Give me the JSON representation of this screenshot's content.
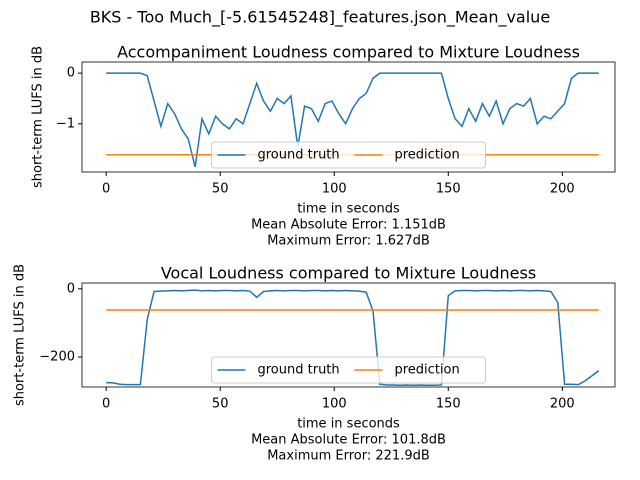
{
  "title": "BKS - Too Much_[-5.61545248]_features.json_Mean_value",
  "chart_data": [
    {
      "type": "line",
      "title": "Accompaniment Loudness compared to Mixture Loudness",
      "x_label": "time in seconds",
      "y_label": "short-term LUFS in dB",
      "annotations": [
        "Mean Absolute Error: 1.151dB",
        "Maximum Error: 1.627dB"
      ],
      "xlim": [
        -10.6,
        223.1
      ],
      "ylim": [
        -1.95,
        0.22
      ],
      "xticks": [
        0,
        50,
        100,
        150,
        200
      ],
      "yticks": [
        0,
        {
          "value": -1,
          "label": "−1"
        }
      ],
      "legend": "lower center",
      "legend_columns": 2,
      "x": [
        0,
        3,
        6,
        9,
        12,
        15,
        18,
        21,
        24,
        27,
        30,
        33,
        36,
        39,
        42,
        45,
        48,
        51,
        54,
        57,
        60,
        63,
        66,
        69,
        72,
        75,
        78,
        81,
        84,
        87,
        90,
        93,
        96,
        99,
        102,
        105,
        108,
        111,
        114,
        117,
        120,
        123,
        126,
        129,
        132,
        135,
        138,
        141,
        144,
        147,
        150,
        153,
        156,
        159,
        162,
        165,
        168,
        171,
        174,
        177,
        180,
        183,
        186,
        189,
        192,
        195,
        198,
        201,
        204,
        207,
        210,
        213,
        216
      ],
      "series": [
        {
          "name": "ground truth",
          "color": "#1f77b4",
          "values": [
            0,
            0,
            0,
            0,
            0,
            0,
            -0.05,
            -0.55,
            -1.05,
            -0.6,
            -0.8,
            -1.1,
            -1.3,
            -1.85,
            -0.9,
            -1.2,
            -0.85,
            -1.0,
            -1.1,
            -0.9,
            -1.0,
            -0.6,
            -0.2,
            -0.55,
            -0.75,
            -0.5,
            -0.6,
            -0.45,
            -1.45,
            -0.65,
            -0.7,
            -0.95,
            -0.6,
            -0.55,
            -0.8,
            -1.0,
            -0.7,
            -0.5,
            -0.4,
            -0.1,
            0,
            0,
            0,
            0,
            0,
            0,
            0,
            0,
            0,
            0,
            -0.5,
            -0.9,
            -1.05,
            -0.7,
            -0.95,
            -0.6,
            -0.85,
            -0.55,
            -1.0,
            -0.7,
            -0.6,
            -0.65,
            -0.5,
            -1.0,
            -0.85,
            -0.9,
            -0.75,
            -0.6,
            -0.1,
            0,
            0,
            0,
            0
          ]
        },
        {
          "name": "prediction",
          "color": "#ff7f0e",
          "values": [
            -1.61,
            -1.61,
            -1.61,
            -1.61,
            -1.61,
            -1.61,
            -1.61,
            -1.61,
            -1.61,
            -1.61,
            -1.61,
            -1.61,
            -1.61,
            -1.61,
            -1.61,
            -1.61,
            -1.61,
            -1.61,
            -1.61,
            -1.61,
            -1.61,
            -1.61,
            -1.61,
            -1.61,
            -1.61,
            -1.61,
            -1.61,
            -1.61,
            -1.61,
            -1.61,
            -1.61,
            -1.61,
            -1.61,
            -1.61,
            -1.61,
            -1.61,
            -1.61,
            -1.61,
            -1.61,
            -1.61,
            -1.61,
            -1.61,
            -1.61,
            -1.61,
            -1.61,
            -1.61,
            -1.61,
            -1.61,
            -1.61,
            -1.61,
            -1.61,
            -1.61,
            -1.61,
            -1.61,
            -1.61,
            -1.61,
            -1.61,
            -1.61,
            -1.61,
            -1.61,
            -1.61,
            -1.61,
            -1.61,
            -1.61,
            -1.61,
            -1.61,
            -1.61,
            -1.61,
            -1.61,
            -1.61,
            -1.61,
            -1.61,
            -1.61
          ]
        }
      ]
    },
    {
      "type": "line",
      "title": "Vocal Loudness compared to Mixture Loudness",
      "x_label": "time in seconds",
      "y_label": "short-term LUFS in dB",
      "annotations": [
        "Mean Absolute Error: 101.8dB",
        "Maximum Error: 221.9dB"
      ],
      "xlim": [
        -10.6,
        223.1
      ],
      "ylim": [
        -288,
        17
      ],
      "xticks": [
        0,
        50,
        100,
        150,
        200
      ],
      "yticks": [
        0,
        {
          "value": -200,
          "label": "−200"
        }
      ],
      "legend": "lower center",
      "legend_columns": 2,
      "x": [
        0,
        3,
        6,
        9,
        12,
        15,
        18,
        21,
        24,
        27,
        30,
        33,
        36,
        39,
        42,
        45,
        48,
        51,
        54,
        57,
        60,
        63,
        66,
        69,
        72,
        75,
        78,
        81,
        84,
        87,
        90,
        93,
        96,
        99,
        102,
        105,
        108,
        111,
        114,
        117,
        120,
        123,
        126,
        129,
        132,
        135,
        138,
        141,
        144,
        147,
        150,
        153,
        156,
        159,
        162,
        165,
        168,
        171,
        174,
        177,
        180,
        183,
        186,
        189,
        192,
        195,
        198,
        201,
        204,
        207,
        210,
        213,
        216
      ],
      "series": [
        {
          "name": "ground truth",
          "color": "#1f77b4",
          "values": [
            -275,
            -276,
            -280,
            -281,
            -281,
            -281,
            -90,
            -8,
            -7,
            -6,
            -5,
            -6,
            -5,
            -4,
            -6,
            -5,
            -6,
            -5,
            -5,
            -6,
            -5,
            -7,
            -25,
            -8,
            -6,
            -5,
            -6,
            -5,
            -5,
            -6,
            -5,
            -5,
            -6,
            -5,
            -6,
            -5,
            -6,
            -7,
            -10,
            -65,
            -280,
            -282,
            -282,
            -283,
            -282,
            -283,
            -282,
            -283,
            -283,
            -282,
            -20,
            -6,
            -5,
            -5,
            -6,
            -5,
            -5,
            -6,
            -5,
            -6,
            -5,
            -5,
            -6,
            -5,
            -6,
            -8,
            -40,
            -280,
            -280,
            -281,
            -270,
            -255,
            -240
          ]
        },
        {
          "name": "prediction",
          "color": "#ff7f0e",
          "values": [
            -62,
            -62,
            -62,
            -62,
            -62,
            -62,
            -62,
            -62,
            -62,
            -62,
            -62,
            -62,
            -62,
            -62,
            -62,
            -62,
            -62,
            -62,
            -62,
            -62,
            -62,
            -62,
            -62,
            -62,
            -62,
            -62,
            -62,
            -62,
            -62,
            -62,
            -62,
            -62,
            -62,
            -62,
            -62,
            -62,
            -62,
            -62,
            -62,
            -62,
            -62,
            -62,
            -62,
            -62,
            -62,
            -62,
            -62,
            -62,
            -62,
            -62,
            -62,
            -62,
            -62,
            -62,
            -62,
            -62,
            -62,
            -62,
            -62,
            -62,
            -62,
            -62,
            -62,
            -62,
            -62,
            -62,
            -62,
            -62,
            -62,
            -62,
            -62,
            -62,
            -62
          ]
        }
      ]
    }
  ]
}
